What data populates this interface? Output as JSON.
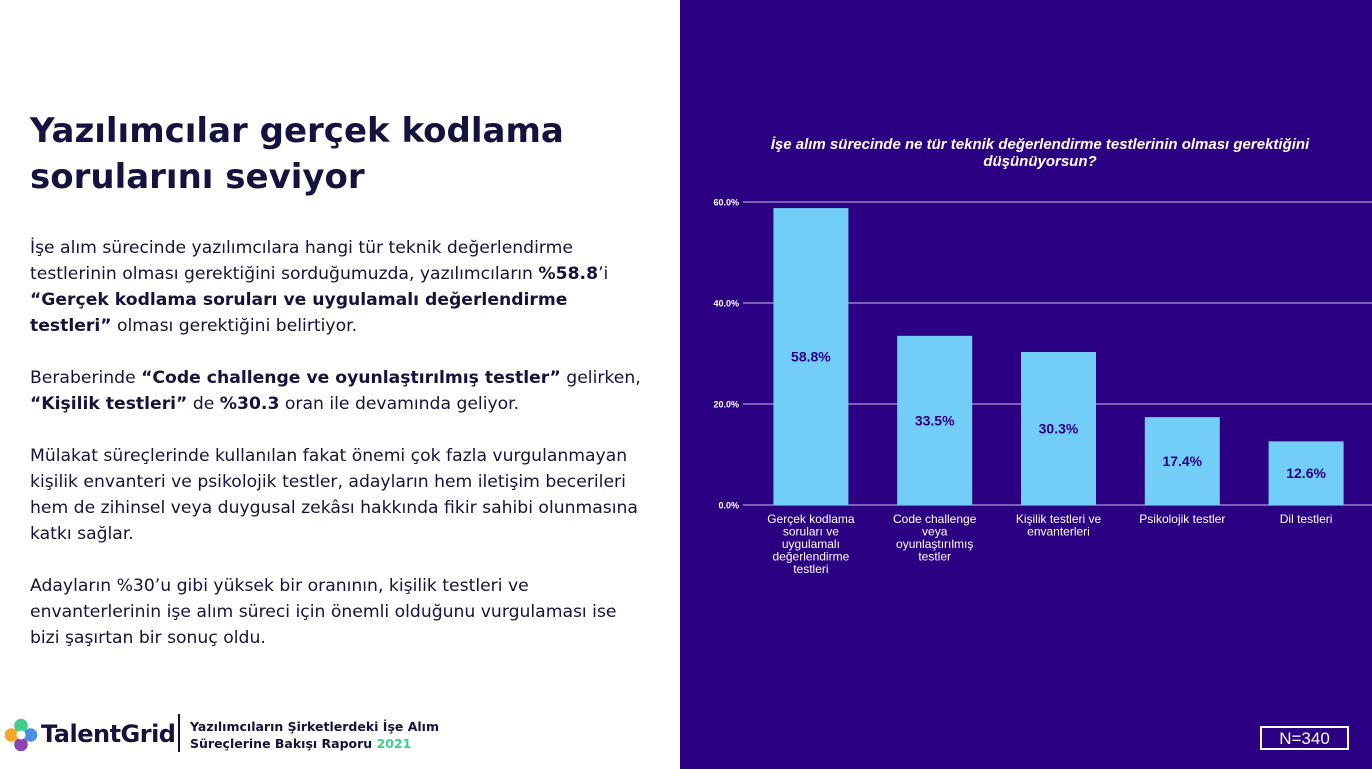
{
  "slide": {
    "title": "Yazılımcılar gerçek kodlama sorularını seviyor",
    "paragraphs": [
      [
        {
          "t": "İşe alım sürecinde yazılımcılara hangi tür teknik değerlendirme testlerinin olması gerektiğini sorduğumuzda, yazılımcıların "
        },
        {
          "t": "%58.8",
          "b": true
        },
        {
          "t": "’i "
        },
        {
          "t": "“Gerçek kodlama soruları ve uygulamalı değerlendirme testleri”",
          "b": true
        },
        {
          "t": " olması gerektiğini belirtiyor."
        }
      ],
      [
        {
          "t": "Beraberinde "
        },
        {
          "t": "“Code challenge ve oyunlaştırılmış testler”",
          "b": true
        },
        {
          "t": " gelirken, "
        },
        {
          "t": "“Kişilik testleri”",
          "b": true
        },
        {
          "t": " de "
        },
        {
          "t": "%30.3",
          "b": true
        },
        {
          "t": " oran ile devamında geliyor."
        }
      ],
      [
        {
          "t": "Mülakat süreçlerinde kullanılan fakat önemi çok fazla vurgulanmayan kişilik envanteri ve psikolojik testler, adayların hem iletişim becerileri hem de zihinsel veya duygusal zekâsı hakkında fikir sahibi olunmasına katkı sağlar."
        }
      ],
      [
        {
          "t": "Adayların %30’u gibi yüksek bir oranının, kişilik testleri ve envanterlerinin işe alım süreci için önemli olduğunu vurgulaması ise bizi şaşırtan bir sonuç oldu."
        }
      ]
    ]
  },
  "footer": {
    "brand": "TalentGrid",
    "report_line1": "Yazılımcıların Şirketlerdeki İşe Alım",
    "report_line2": "Süreçlerine Bakışı Raporu",
    "report_year": "2021"
  },
  "sample_size": "N=340",
  "colors": {
    "panel_bg": "#2c0083",
    "bar": "#72cdf7",
    "heading": "#14133d",
    "year_accent": "#3ecf8e",
    "logo": [
      "#3ecf8e",
      "#4a90e2",
      "#8e44ad",
      "#f5a623"
    ]
  },
  "chart_data": {
    "type": "bar",
    "title": "İşe alım sürecinde ne tür teknik değerlendirme testlerinin olması gerektiğini düşünüyorsun?",
    "categories": [
      [
        "Gerçek kodlama",
        "soruları ve",
        "uygulamalı",
        "değerlendirme",
        "testleri"
      ],
      [
        "Code challenge",
        "veya",
        "oyunlaştırılmış",
        "testler"
      ],
      [
        "Kişilik testleri ve",
        "envanterleri"
      ],
      [
        "Psikolojik testler"
      ],
      [
        "Dil testleri"
      ]
    ],
    "values": [
      58.8,
      33.5,
      30.3,
      17.4,
      12.6
    ],
    "data_labels": [
      "58.8%",
      "33.5%",
      "30.3%",
      "17.4%",
      "12.6%"
    ],
    "ylim": [
      0,
      60
    ],
    "yticks": [
      0,
      20,
      40,
      60
    ],
    "ytick_labels": [
      "0.0%",
      "20.0%",
      "40.0%",
      "60.0%"
    ],
    "grid": true,
    "legend": "none"
  }
}
